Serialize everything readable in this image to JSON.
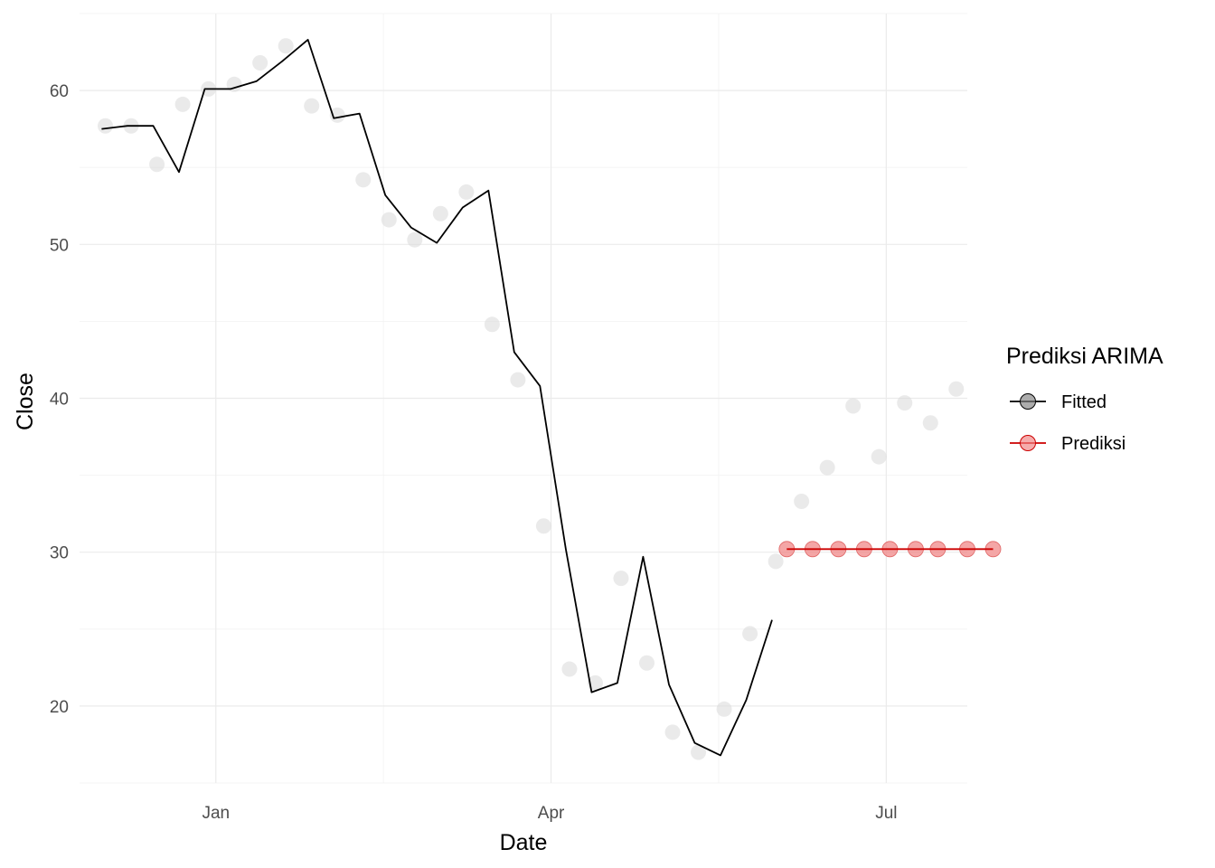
{
  "chart_data": {
    "type": "line",
    "title": "",
    "xlabel": "Date",
    "ylabel": "Close",
    "x_axis_type": "date",
    "xlim": [
      "2019-11-25",
      "2020-07-23"
    ],
    "ylim": [
      15,
      65
    ],
    "x_tick_labels": [
      {
        "label": "Jan",
        "date": "2020-01-01"
      },
      {
        "label": "Apr",
        "date": "2020-04-01"
      },
      {
        "label": "Jul",
        "date": "2020-07-01"
      }
    ],
    "y_ticks": [
      20,
      30,
      40,
      50,
      60
    ],
    "grid": true,
    "legend": {
      "title": "Prediksi ARIMA",
      "position": "right",
      "entries": [
        {
          "label": "Fitted",
          "color": "#000000",
          "point_color": "#808080"
        },
        {
          "label": "Prediksi",
          "color": "#cc0000",
          "point_color": "#f08080"
        }
      ]
    },
    "actual": {
      "color": "#d9d9d9",
      "x": [
        "2019-12-02",
        "2019-12-09",
        "2019-12-16",
        "2019-12-23",
        "2019-12-30",
        "2020-01-06",
        "2020-01-13",
        "2020-01-20",
        "2020-01-27",
        "2020-02-03",
        "2020-02-10",
        "2020-02-17",
        "2020-02-24",
        "2020-03-02",
        "2020-03-09",
        "2020-03-16",
        "2020-03-23",
        "2020-03-30",
        "2020-04-06",
        "2020-04-13",
        "2020-04-20",
        "2020-04-27",
        "2020-05-04",
        "2020-05-11",
        "2020-05-18",
        "2020-05-25",
        "2020-06-01",
        "2020-06-08",
        "2020-06-15",
        "2020-06-22",
        "2020-06-29",
        "2020-07-06",
        "2020-07-13",
        "2020-07-20"
      ],
      "y": [
        57.7,
        57.7,
        55.2,
        59.1,
        60.1,
        60.4,
        61.8,
        62.9,
        59.0,
        58.4,
        54.2,
        51.6,
        50.3,
        52.0,
        53.4,
        44.8,
        41.2,
        31.7,
        22.4,
        21.5,
        28.3,
        22.8,
        18.3,
        17.0,
        19.8,
        24.7,
        29.4,
        33.3,
        35.5,
        39.5,
        36.2,
        39.7,
        38.4,
        40.6
      ]
    },
    "series": [
      {
        "name": "Fitted",
        "color": "#000000",
        "x": [
          "2019-12-01",
          "2019-12-08",
          "2019-12-15",
          "2019-12-22",
          "2019-12-29",
          "2020-01-05",
          "2020-01-12",
          "2020-01-19",
          "2020-01-26",
          "2020-02-02",
          "2020-02-09",
          "2020-02-16",
          "2020-02-23",
          "2020-03-01",
          "2020-03-08",
          "2020-03-15",
          "2020-03-22",
          "2020-03-29",
          "2020-04-05",
          "2020-04-12",
          "2020-04-19",
          "2020-04-26",
          "2020-05-03",
          "2020-05-10",
          "2020-05-17",
          "2020-05-24",
          "2020-05-31"
        ],
        "y": [
          57.5,
          57.7,
          57.7,
          54.7,
          60.1,
          60.1,
          60.6,
          61.9,
          63.3,
          58.2,
          58.5,
          53.2,
          51.1,
          50.1,
          52.4,
          53.5,
          43.0,
          40.8,
          30.2,
          20.9,
          21.5,
          29.7,
          21.4,
          17.6,
          16.8,
          20.4,
          25.6
        ]
      },
      {
        "name": "Prediksi",
        "color": "#cc0000",
        "point_color": "#f08080",
        "x": [
          "2020-06-04",
          "2020-06-11",
          "2020-06-18",
          "2020-06-25",
          "2020-07-02",
          "2020-07-09",
          "2020-07-15",
          "2020-07-23",
          "2020-07-30"
        ],
        "y": [
          30.2,
          30.2,
          30.2,
          30.2,
          30.2,
          30.2,
          30.2,
          30.2,
          30.2
        ]
      }
    ]
  }
}
